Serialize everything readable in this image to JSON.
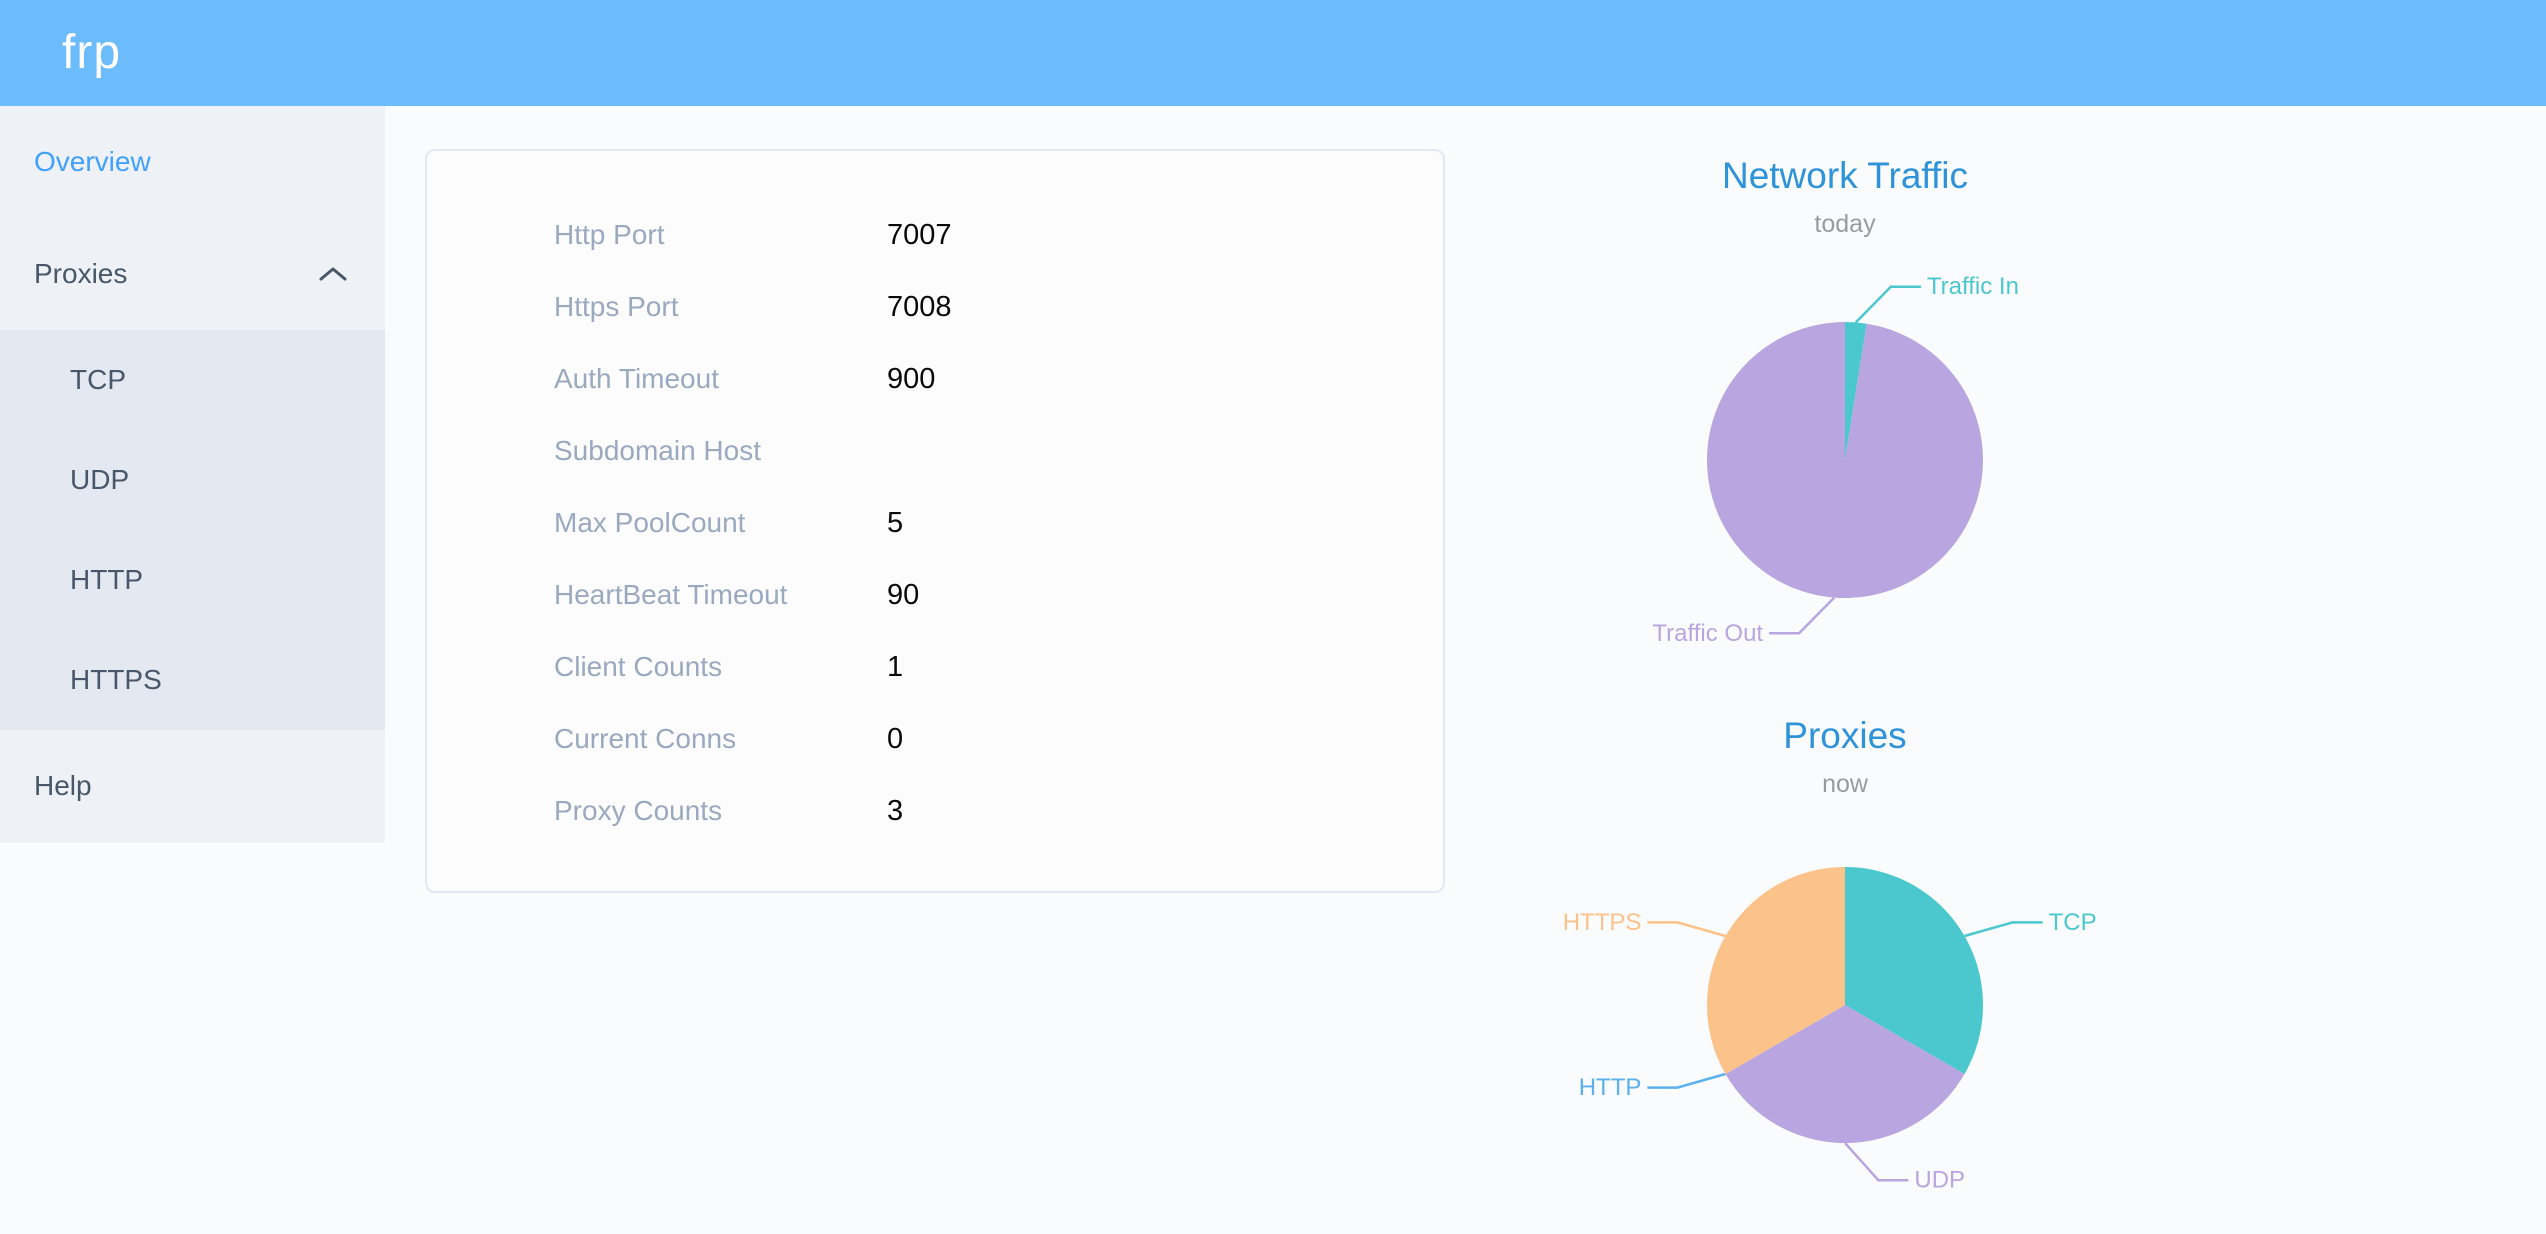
{
  "header": {
    "logo": "frp"
  },
  "sidebar": {
    "overview": "Overview",
    "proxies": "Proxies",
    "submenu": [
      "TCP",
      "UDP",
      "HTTP",
      "HTTPS"
    ],
    "help": "Help"
  },
  "server_info": {
    "rows": [
      {
        "label": "Http Port",
        "value": "7007"
      },
      {
        "label": "Https Port",
        "value": "7008"
      },
      {
        "label": "Auth Timeout",
        "value": "900"
      },
      {
        "label": "Subdomain Host",
        "value": ""
      },
      {
        "label": "Max PoolCount",
        "value": "5"
      },
      {
        "label": "HeartBeat Timeout",
        "value": "90"
      },
      {
        "label": "Client Counts",
        "value": "1"
      },
      {
        "label": "Current Conns",
        "value": "0"
      },
      {
        "label": "Proxy Counts",
        "value": "3"
      }
    ]
  },
  "chart_data": [
    {
      "type": "pie",
      "title": "Network Traffic",
      "subtitle": "today",
      "labels": [
        "Traffic In",
        "Traffic Out"
      ],
      "values": [
        2.5,
        97.5
      ],
      "colors": [
        "#4bc8ce",
        "#b9a6e0"
      ],
      "label_sides": [
        "right",
        "left"
      ],
      "legend_position": "callout-labels",
      "grid": false
    },
    {
      "type": "pie",
      "title": "Proxies",
      "subtitle": "now",
      "labels": [
        "TCP",
        "UDP",
        "HTTP",
        "HTTPS"
      ],
      "values": [
        1,
        1,
        0,
        1
      ],
      "colors": [
        "#4bc8ce",
        "#b9a6e0",
        "#5ab1ef",
        "#fbc28a"
      ],
      "label_sides": [
        "right",
        "right",
        "left",
        "left"
      ],
      "legend_position": "callout-labels",
      "grid": false
    }
  ],
  "colors": {
    "header_bg": "#6cbcfc",
    "sidebar_bg": "#eef1f6",
    "submenu_bg": "#e4e8f1",
    "active_link": "#42a1fc",
    "menu_text": "#48576a",
    "chart_title": "#2e93d8",
    "subtitle_gray": "#9b9b9b",
    "config_label_gray": "#9aa9bf"
  }
}
